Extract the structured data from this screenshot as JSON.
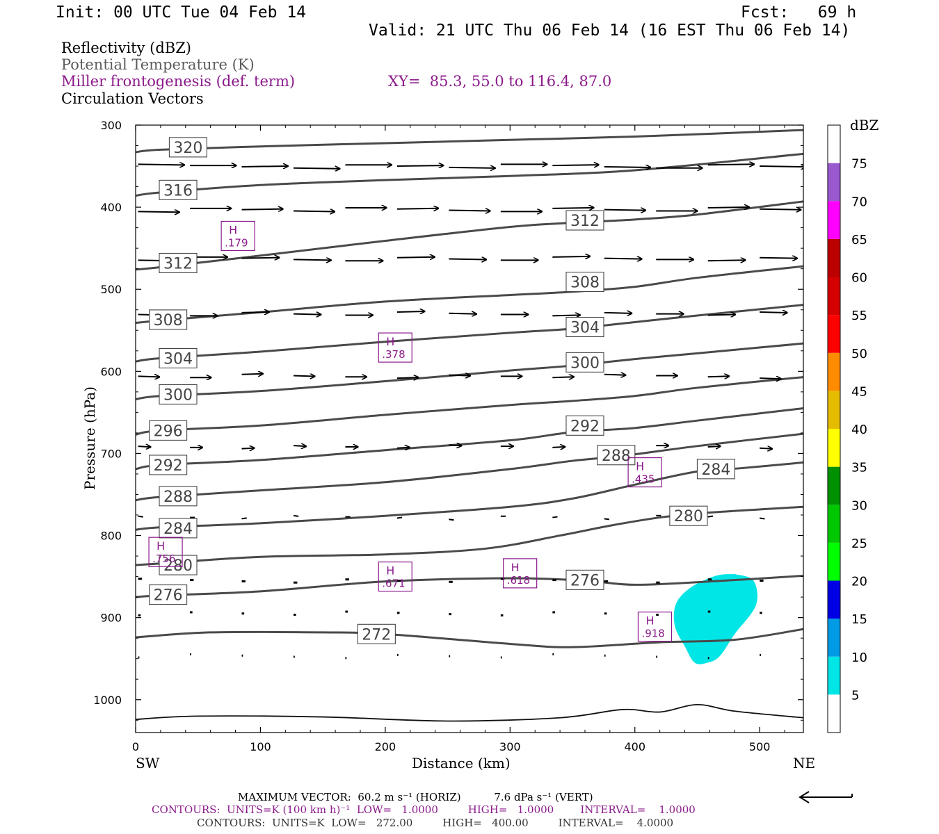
{
  "header": {
    "init": "Init: 00 UTC Tue 04 Feb 14",
    "fcst": "Fcst:   69 h",
    "valid": "Valid: 21 UTC Thu 06 Feb 14 (16 EST Thu 06 Feb 14)"
  },
  "titles": {
    "line1": "Reflectivity (dBZ)",
    "line2": "Potential Temperature (K)",
    "line3": "Miller frontogenesis (def. term)",
    "xy": "XY=  85.3, 55.0 to 116.4, 87.0",
    "line4": "Circulation Vectors"
  },
  "footer": {
    "max_vector": "MAXIMUM VECTOR:  60.2 m s⁻¹ (HORIZ)          7.6 dPa s⁻¹ (VERT)",
    "contours1": "CONTOURS:  UNITS=K (100 km h)⁻¹  LOW=   1.0000         HIGH=   1.0000        INTERVAL=    1.0000",
    "contours2": "CONTOURS:  UNITS=K  LOW=   272.00         HIGH=   400.00         INTERVAL=    4.0000"
  },
  "colors": {
    "theta": "#4a4a4a",
    "frontogenesis": "#8b1a8b",
    "refl_5": "#00e5e5"
  },
  "chart_data": {
    "type": "cross-section",
    "xlabel": "Distance (km)",
    "ylabel": "Pressure (hPa)",
    "xlim": [
      0,
      535
    ],
    "ylim": [
      300,
      1040
    ],
    "x_ticks": [
      0,
      100,
      200,
      300,
      400,
      500
    ],
    "y_ticks": [
      300,
      400,
      500,
      600,
      700,
      800,
      900,
      1000
    ],
    "y_tick_labels": [
      "300",
      "400",
      "500",
      "600",
      "700",
      "800",
      "900",
      "1000"
    ],
    "x_end_labels": {
      "left": "SW",
      "right": "NE"
    },
    "colorbar": {
      "title": "dBZ",
      "levels": [
        5,
        10,
        15,
        20,
        25,
        30,
        35,
        40,
        45,
        50,
        55,
        60,
        65,
        70,
        75
      ],
      "colors": [
        "#ffffff",
        "#00e5e5",
        "#009be5",
        "#0000e5",
        "#00ff00",
        "#00c800",
        "#009100",
        "#ffff00",
        "#e6bc00",
        "#ff8c00",
        "#ff0000",
        "#d50000",
        "#bc0000",
        "#ff00ff",
        "#9b59d0",
        "#ffffff"
      ]
    },
    "theta_contours": [
      {
        "value": 320,
        "label": "320",
        "points": [
          [
            0,
            333
          ],
          [
            20,
            330
          ],
          [
            100,
            326
          ],
          [
            200,
            322
          ],
          [
            300,
            318
          ],
          [
            400,
            314
          ],
          [
            535,
            306
          ]
        ],
        "labels_at": [
          [
            42,
            327
          ]
        ]
      },
      {
        "value": 316,
        "label": "316",
        "points": [
          [
            0,
            386
          ],
          [
            20,
            382
          ],
          [
            100,
            373
          ],
          [
            200,
            367
          ],
          [
            300,
            362
          ],
          [
            400,
            355
          ],
          [
            535,
            335
          ]
        ],
        "labels_at": [
          [
            34,
            379
          ]
        ]
      },
      {
        "value": 312,
        "label": "312",
        "points": [
          [
            0,
            476
          ],
          [
            20,
            473
          ],
          [
            100,
            459
          ],
          [
            200,
            441
          ],
          [
            300,
            424
          ],
          [
            350,
            419
          ],
          [
            400,
            415
          ],
          [
            450,
            409
          ],
          [
            535,
            393
          ]
        ],
        "labels_at": [
          [
            34,
            468
          ],
          [
            360,
            416
          ]
        ]
      },
      {
        "value": 308,
        "label": "308",
        "points": [
          [
            0,
            541
          ],
          [
            20,
            538
          ],
          [
            100,
            528
          ],
          [
            200,
            515
          ],
          [
            300,
            507
          ],
          [
            350,
            503
          ],
          [
            400,
            497
          ],
          [
            450,
            486
          ],
          [
            535,
            472
          ]
        ],
        "labels_at": [
          [
            26,
            537
          ],
          [
            360,
            491
          ]
        ]
      },
      {
        "value": 304,
        "label": "304",
        "points": [
          [
            0,
            588
          ],
          [
            20,
            584
          ],
          [
            100,
            576
          ],
          [
            200,
            564
          ],
          [
            300,
            553
          ],
          [
            350,
            548
          ],
          [
            400,
            540
          ],
          [
            450,
            532
          ],
          [
            535,
            519
          ]
        ],
        "labels_at": [
          [
            34,
            584
          ],
          [
            360,
            546
          ]
        ]
      },
      {
        "value": 300,
        "label": "300",
        "points": [
          [
            0,
            634
          ],
          [
            20,
            630
          ],
          [
            100,
            624
          ],
          [
            200,
            612
          ],
          [
            300,
            599
          ],
          [
            350,
            593
          ],
          [
            400,
            585
          ],
          [
            450,
            578
          ],
          [
            535,
            566
          ]
        ],
        "labels_at": [
          [
            34,
            628
          ],
          [
            360,
            589
          ]
        ]
      },
      {
        "value": 296,
        "label": "296",
        "points": [
          [
            0,
            677
          ],
          [
            20,
            672
          ],
          [
            100,
            666
          ],
          [
            200,
            653
          ],
          [
            300,
            641
          ],
          [
            350,
            636
          ],
          [
            400,
            630
          ],
          [
            450,
            620
          ],
          [
            535,
            607
          ]
        ],
        "labels_at": [
          [
            26,
            672
          ]
        ]
      },
      {
        "value": 292,
        "label": "292",
        "points": [
          [
            0,
            719
          ],
          [
            20,
            714
          ],
          [
            100,
            708
          ],
          [
            200,
            696
          ],
          [
            300,
            684
          ],
          [
            350,
            674
          ],
          [
            400,
            669
          ],
          [
            450,
            660
          ],
          [
            535,
            645
          ]
        ],
        "labels_at": [
          [
            26,
            714
          ],
          [
            360,
            666
          ]
        ]
      },
      {
        "value": 288,
        "label": "288",
        "points": [
          [
            0,
            757
          ],
          [
            20,
            753
          ],
          [
            100,
            745
          ],
          [
            200,
            735
          ],
          [
            300,
            719
          ],
          [
            350,
            709
          ],
          [
            390,
            703
          ],
          [
            450,
            691
          ],
          [
            535,
            676
          ]
        ],
        "labels_at": [
          [
            34,
            752
          ],
          [
            385,
            702
          ]
        ]
      },
      {
        "value": 284,
        "label": "284",
        "points": [
          [
            0,
            793
          ],
          [
            20,
            790
          ],
          [
            100,
            785
          ],
          [
            200,
            776
          ],
          [
            300,
            765
          ],
          [
            350,
            755
          ],
          [
            400,
            738
          ],
          [
            450,
            722
          ],
          [
            485,
            718
          ],
          [
            535,
            711
          ]
        ],
        "labels_at": [
          [
            34,
            791
          ],
          [
            465,
            719
          ]
        ]
      },
      {
        "value": 280,
        "label": "280",
        "points": [
          [
            0,
            836
          ],
          [
            20,
            834
          ],
          [
            100,
            826
          ],
          [
            200,
            823
          ],
          [
            280,
            816
          ],
          [
            340,
            800
          ],
          [
            380,
            788
          ],
          [
            420,
            778
          ],
          [
            460,
            772
          ],
          [
            535,
            765
          ]
        ],
        "labels_at": [
          [
            34,
            836
          ],
          [
            443,
            776
          ]
        ]
      },
      {
        "value": 276,
        "label": "276",
        "points": [
          [
            0,
            875
          ],
          [
            20,
            873
          ],
          [
            100,
            868
          ],
          [
            200,
            856
          ],
          [
            300,
            852
          ],
          [
            360,
            855
          ],
          [
            400,
            860
          ],
          [
            460,
            856
          ],
          [
            535,
            849
          ]
        ],
        "labels_at": [
          [
            26,
            872
          ],
          [
            360,
            854
          ]
        ]
      },
      {
        "value": 272,
        "label": "272",
        "points": [
          [
            0,
            924
          ],
          [
            60,
            918
          ],
          [
            150,
            918
          ],
          [
            200,
            920
          ],
          [
            300,
            932
          ],
          [
            350,
            936
          ],
          [
            420,
            930
          ],
          [
            480,
            927
          ],
          [
            535,
            914
          ]
        ],
        "labels_at": [
          [
            193,
            920
          ]
        ]
      },
      {
        "value": 0,
        "label": "",
        "points": [
          [
            0,
            1024
          ],
          [
            50,
            1020
          ],
          [
            150,
            1021
          ],
          [
            250,
            1026
          ],
          [
            340,
            1022
          ],
          [
            390,
            1012
          ],
          [
            420,
            1015
          ],
          [
            450,
            1006
          ],
          [
            480,
            1014
          ],
          [
            535,
            1022
          ]
        ],
        "labels_at": []
      }
    ],
    "frontogenesis_maxima": [
      {
        "label": "H",
        "value": ".179",
        "x": 82,
        "p": 435
      },
      {
        "label": "H",
        "value": ".378",
        "x": 208,
        "p": 571
      },
      {
        "label": "H",
        "value": ".435",
        "x": 408,
        "p": 723
      },
      {
        "label": "H",
        "value": ".756",
        "x": 24,
        "p": 820
      },
      {
        "label": "H",
        "value": ".671",
        "x": 208,
        "p": 850
      },
      {
        "label": "H",
        "value": ".618",
        "x": 308,
        "p": 846
      },
      {
        "label": "H",
        "value": ".918",
        "x": 416,
        "p": 911
      }
    ],
    "reflectivity_5dbz_area": [
      [
        480,
        847
      ],
      [
        495,
        855
      ],
      [
        497,
        885
      ],
      [
        480,
        920
      ],
      [
        468,
        947
      ],
      [
        458,
        955
      ],
      [
        448,
        955
      ],
      [
        440,
        935
      ],
      [
        432,
        910
      ],
      [
        433,
        883
      ],
      [
        445,
        863
      ],
      [
        465,
        849
      ]
    ],
    "circulation_vectors": {
      "levels": [
        350,
        403,
        463,
        530,
        606,
        692,
        778,
        855,
        895,
        947
      ],
      "lengths_km": [
        37,
        33,
        30,
        22,
        17,
        10,
        4,
        3,
        2,
        1
      ],
      "max_vector": {
        "horiz": 60.2,
        "vert": 7.6
      }
    }
  }
}
